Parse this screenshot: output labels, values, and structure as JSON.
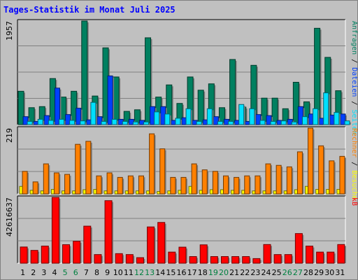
{
  "title": "Tages-Statistik im Monat Juli 2025",
  "colors": {
    "anfragen": "#008060",
    "dateien": "#0040ff",
    "seiten": "#00e0ff",
    "besuche": "#ffff00",
    "rechner": "#ff8000",
    "kb": "#ff0000",
    "weekend_day": "#008040",
    "weekday": "#000000"
  },
  "chart_data": [
    {
      "type": "bar",
      "panel": "top",
      "max_label": "1957",
      "ylim": [
        0,
        1957
      ],
      "grid": true,
      "right_label_parts": [
        {
          "text": "Anfragen",
          "color": "#008060"
        },
        {
          "text": " / ",
          "color": "#000000"
        },
        {
          "text": "Dateien",
          "color": "#0040ff"
        },
        {
          "text": " / ",
          "color": "#000000"
        },
        {
          "text": "Seiten",
          "color": "#00e0ff"
        }
      ],
      "series": [
        {
          "key": "anfragen",
          "values": [
            630,
            320,
            340,
            870,
            520,
            630,
            1957,
            540,
            1450,
            900,
            250,
            280,
            1640,
            520,
            750,
            400,
            900,
            650,
            770,
            320,
            1230,
            330,
            1120,
            500,
            500,
            300,
            800,
            430,
            1820,
            1270,
            640
          ]
        },
        {
          "key": "dateien",
          "values": [
            150,
            60,
            170,
            690,
            190,
            310,
            90,
            150,
            920,
            100,
            100,
            80,
            340,
            340,
            80,
            130,
            80,
            90,
            150,
            100,
            80,
            60,
            190,
            170,
            80,
            100,
            340,
            200,
            120,
            180,
            200
          ]
        },
        {
          "key": "seiten",
          "values": [
            60,
            100,
            80,
            100,
            80,
            70,
            420,
            60,
            100,
            60,
            50,
            50,
            240,
            200,
            120,
            300,
            60,
            300,
            60,
            60,
            380,
            300,
            80,
            60,
            70,
            50,
            150,
            300,
            600,
            230,
            70
          ]
        }
      ]
    },
    {
      "type": "bar",
      "panel": "middle",
      "max_label": "219",
      "ylim": [
        0,
        219
      ],
      "grid": true,
      "right_label_parts": [
        {
          "text": "Rechner",
          "color": "#ff8000"
        },
        {
          "text": " / ",
          "color": "#000000"
        },
        {
          "text": "Besuche",
          "color": "#ffff00"
        }
      ],
      "series": [
        {
          "key": "besuche",
          "values": [
            25,
            12,
            10,
            15,
            10,
            10,
            14,
            15,
            10,
            10,
            10,
            10,
            10,
            8,
            10,
            12,
            25,
            12,
            14,
            14,
            12,
            12,
            10,
            10,
            10,
            10,
            14,
            25,
            15,
            15,
            15
          ]
        },
        {
          "key": "rechner",
          "values": [
            75,
            40,
            100,
            70,
            65,
            165,
            175,
            60,
            70,
            55,
            60,
            60,
            200,
            150,
            55,
            55,
            100,
            80,
            75,
            60,
            55,
            60,
            60,
            100,
            95,
            90,
            140,
            219,
            160,
            110,
            125
          ]
        }
      ]
    },
    {
      "type": "bar",
      "panel": "bottom",
      "max_label": "42616637",
      "ylim": [
        0,
        42616637
      ],
      "grid": true,
      "right_label_parts": [
        {
          "text": "kB",
          "color": "#ff0000"
        }
      ],
      "series": [
        {
          "key": "kb",
          "values": [
            10500000,
            8300000,
            11100000,
            42616637,
            12000000,
            14200000,
            24000000,
            5600000,
            40500000,
            6200000,
            5600000,
            3600000,
            23500000,
            26400000,
            7200000,
            10400000,
            4300000,
            11900000,
            4300000,
            4300000,
            4300000,
            4300000,
            3000000,
            12100000,
            5600000,
            5600000,
            19200000,
            11100000,
            7200000,
            7200000,
            12100000
          ]
        }
      ]
    }
  ],
  "days": [
    "1",
    "2",
    "3",
    "4",
    "5",
    "6",
    "7",
    "8",
    "9",
    "10",
    "11",
    "12",
    "13",
    "14",
    "15",
    "16",
    "17",
    "18",
    "19",
    "20",
    "21",
    "22",
    "23",
    "24",
    "25",
    "26",
    "27",
    "28",
    "29",
    "30",
    "31"
  ],
  "weekend_days": [
    "5",
    "6",
    "12",
    "13",
    "19",
    "20",
    "26",
    "27"
  ]
}
